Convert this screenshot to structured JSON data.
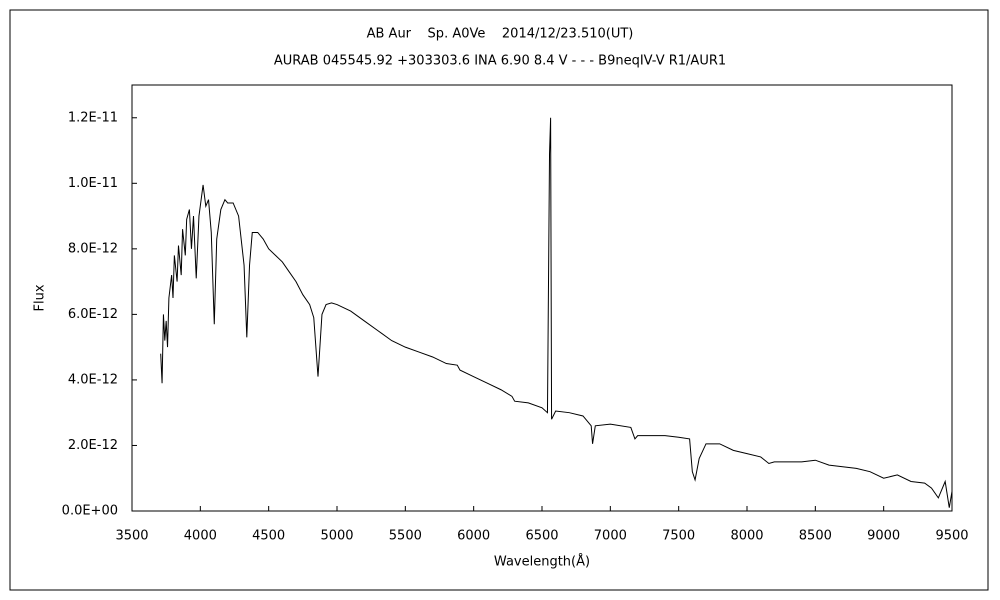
{
  "chart_data": {
    "type": "line",
    "title": "AB Aur    Sp. A0Ve    2014/12/23.510(UT)",
    "subtitle": "AURAB 045545.92 +303303.6 INA 6.90 8.4 V - - - B9neqIV-V R1/AUR1",
    "xlabel": "Wavelength(Å)",
    "ylabel": "Flux",
    "xlim": [
      3500,
      9500
    ],
    "xticks": [
      3500,
      4000,
      4500,
      5000,
      5500,
      6000,
      6500,
      7000,
      7500,
      8000,
      8500,
      9000,
      9500
    ],
    "ylim": [
      0,
      1.3e-11
    ],
    "yticks": [
      {
        "value": 0,
        "label": "0.0E+00"
      },
      {
        "value": 2e-12,
        "label": "2.0E-12"
      },
      {
        "value": 4e-12,
        "label": "4.0E-12"
      },
      {
        "value": 6e-12,
        "label": "6.0E-12"
      },
      {
        "value": 8e-12,
        "label": "8.0E-12"
      },
      {
        "value": 1e-11,
        "label": "1.0E-11"
      },
      {
        "value": 1.2e-11,
        "label": "1.2E-11"
      }
    ],
    "grid": false,
    "color": "#000000",
    "x": [
      3710,
      3720,
      3730,
      3740,
      3750,
      3760,
      3770,
      3790,
      3800,
      3810,
      3830,
      3840,
      3860,
      3870,
      3890,
      3900,
      3920,
      3935,
      3950,
      3970,
      3990,
      4020,
      4040,
      4060,
      4080,
      4102,
      4120,
      4150,
      4180,
      4200,
      4240,
      4280,
      4320,
      4340,
      4360,
      4380,
      4420,
      4460,
      4500,
      4550,
      4600,
      4650,
      4700,
      4750,
      4800,
      4830,
      4861,
      4890,
      4920,
      4960,
      5000,
      5100,
      5200,
      5300,
      5400,
      5500,
      5600,
      5700,
      5800,
      5880,
      5900,
      6000,
      6100,
      6200,
      6280,
      6300,
      6400,
      6500,
      6540,
      6555,
      6563,
      6570,
      6600,
      6700,
      6800,
      6860,
      6870,
      6890,
      7000,
      7150,
      7180,
      7200,
      7300,
      7400,
      7500,
      7580,
      7600,
      7620,
      7650,
      7700,
      7800,
      7900,
      8000,
      8100,
      8160,
      8200,
      8300,
      8400,
      8500,
      8600,
      8700,
      8800,
      8900,
      9000,
      9100,
      9200,
      9300,
      9350,
      9400,
      9450,
      9480,
      9500
    ],
    "values": [
      4.8e-12,
      3.9e-12,
      6e-12,
      5.2e-12,
      5.8e-12,
      5e-12,
      6.5e-12,
      7.2e-12,
      6.5e-12,
      7.8e-12,
      7e-12,
      8.1e-12,
      7.2e-12,
      8.6e-12,
      7.8e-12,
      8.9e-12,
      9.2e-12,
      8e-12,
      9e-12,
      7.1e-12,
      9e-12,
      9.95e-12,
      9.3e-12,
      9.5e-12,
      8.5e-12,
      5.7e-12,
      8.3e-12,
      9.2e-12,
      9.5e-12,
      9.4e-12,
      9.4e-12,
      9e-12,
      7.5e-12,
      5.3e-12,
      7.5e-12,
      8.5e-12,
      8.5e-12,
      8.3e-12,
      8e-12,
      7.8e-12,
      7.6e-12,
      7.3e-12,
      7e-12,
      6.6e-12,
      6.3e-12,
      5.9e-12,
      4.1e-12,
      6e-12,
      6.3e-12,
      6.35e-12,
      6.3e-12,
      6.1e-12,
      5.8e-12,
      5.5e-12,
      5.2e-12,
      5e-12,
      4.85e-12,
      4.7e-12,
      4.5e-12,
      4.45e-12,
      4.3e-12,
      4.1e-12,
      3.9e-12,
      3.7e-12,
      3.5e-12,
      3.35e-12,
      3.3e-12,
      3.15e-12,
      3e-12,
      1.09e-11,
      1.2e-11,
      2.8e-12,
      3.05e-12,
      3e-12,
      2.9e-12,
      2.6e-12,
      2.05e-12,
      2.6e-12,
      2.65e-12,
      2.55e-12,
      2.2e-12,
      2.3e-12,
      2.3e-12,
      2.3e-12,
      2.25e-12,
      2.2e-12,
      1.2e-12,
      9.5e-13,
      1.6e-12,
      2.05e-12,
      2.05e-12,
      1.85e-12,
      1.75e-12,
      1.65e-12,
      1.45e-12,
      1.5e-12,
      1.5e-12,
      1.5e-12,
      1.55e-12,
      1.4e-12,
      1.35e-12,
      1.3e-12,
      1.2e-12,
      1e-12,
      1.1e-12,
      9e-13,
      8.5e-13,
      7e-13,
      4e-13,
      9e-13,
      1e-13,
      6e-13
    ]
  }
}
